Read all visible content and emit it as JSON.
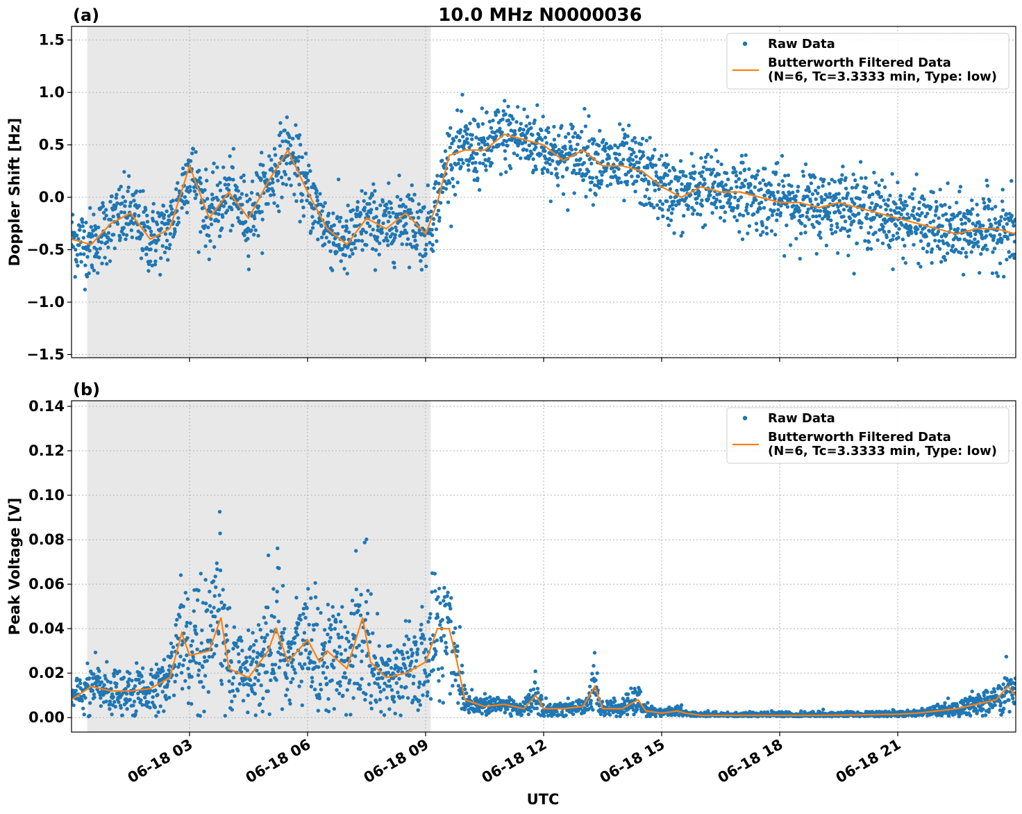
{
  "figure": {
    "title": "10.0 MHz N0000036",
    "xlabel": "UTC"
  },
  "colors": {
    "raw": "#1f77b4",
    "filtered": "#ff7f0e",
    "shade": "#e8e8e8"
  },
  "chart_data": [
    {
      "type": "scatter",
      "panel_label": "(a)",
      "ylabel": "Doppler Shift [Hz]",
      "xlim_hours": [
        0.0,
        24.0
      ],
      "ylim": [
        -1.53,
        1.63
      ],
      "yticks": [
        -1.5,
        -1.0,
        -0.5,
        0.0,
        0.5,
        1.0,
        1.5
      ],
      "ytick_labels": [
        "−1.5",
        "−1.0",
        "−0.5",
        "0.0",
        "0.5",
        "1.0",
        "1.5"
      ],
      "xticks_hours": [
        3,
        6,
        9,
        12,
        15,
        18,
        21
      ],
      "night_shade_hours": [
        0.4,
        9.13
      ],
      "grid": true,
      "legend_placement": "top-right",
      "legend": {
        "raw": "Raw Data",
        "filtered_line1": "Butterworth Filtered Data",
        "filtered_line2": "(N=6, Tc=3.3333 min, Type: low)"
      },
      "series": [
        {
          "name": "Butterworth Filtered Data",
          "x_hours": [
            0,
            0.5,
            1,
            1.5,
            2,
            2.5,
            3,
            3.5,
            4,
            4.5,
            5,
            5.5,
            6,
            6.5,
            7,
            7.5,
            8,
            8.5,
            9,
            9.3,
            9.6,
            10,
            10.5,
            11,
            11.5,
            12,
            12.5,
            13,
            13.5,
            14,
            14.5,
            15,
            15.5,
            16,
            16.5,
            17,
            17.5,
            18,
            18.5,
            19,
            19.5,
            20,
            20.5,
            21,
            21.5,
            22,
            22.5,
            23,
            23.5,
            24
          ],
          "values": [
            -0.4,
            -0.45,
            -0.25,
            -0.15,
            -0.4,
            -0.3,
            0.3,
            -0.2,
            0.05,
            -0.2,
            0.15,
            0.45,
            0.05,
            -0.3,
            -0.45,
            -0.2,
            -0.3,
            -0.15,
            -0.35,
            -0.05,
            0.4,
            0.45,
            0.45,
            0.6,
            0.55,
            0.5,
            0.35,
            0.45,
            0.3,
            0.3,
            0.25,
            0.1,
            0.0,
            0.1,
            0.05,
            0.05,
            0.0,
            -0.05,
            -0.05,
            -0.1,
            -0.05,
            -0.1,
            -0.15,
            -0.2,
            -0.25,
            -0.3,
            -0.35,
            -0.3,
            -0.3,
            -0.35
          ]
        }
      ]
    },
    {
      "type": "scatter",
      "panel_label": "(b)",
      "ylabel": "Peak Voltage [V]",
      "xlim_hours": [
        0.0,
        24.0
      ],
      "ylim": [
        -0.0065,
        0.1425
      ],
      "yticks": [
        0.0,
        0.02,
        0.04,
        0.06,
        0.08,
        0.1,
        0.12,
        0.14
      ],
      "ytick_labels": [
        "0.00",
        "0.02",
        "0.04",
        "0.06",
        "0.08",
        "0.10",
        "0.12",
        "0.14"
      ],
      "xticks_hours": [
        3,
        6,
        9,
        12,
        15,
        18,
        21
      ],
      "xtick_labels": [
        "06-18 03",
        "06-18 06",
        "06-18 09",
        "06-18 12",
        "06-18 15",
        "06-18 18",
        "06-18 21"
      ],
      "night_shade_hours": [
        0.4,
        9.13
      ],
      "grid": true,
      "legend_placement": "top-right",
      "legend": {
        "raw": "Raw Data",
        "filtered_line1": "Butterworth Filtered Data",
        "filtered_line2": "(N=6, Tc=3.3333 min, Type: low)"
      },
      "series": [
        {
          "name": "Butterworth Filtered Data",
          "x_hours": [
            0,
            0.5,
            1,
            1.5,
            2,
            2.5,
            2.8,
            3,
            3.5,
            3.8,
            4,
            4.5,
            5,
            5.2,
            5.5,
            6,
            6.3,
            6.5,
            7,
            7.4,
            7.6,
            8,
            8.5,
            9,
            9.3,
            9.6,
            9.8,
            10,
            10.5,
            11,
            11.5,
            11.8,
            12,
            12.5,
            13,
            13.3,
            13.5,
            14,
            14.4,
            14.6,
            15,
            15.4,
            15.6,
            16,
            17,
            18,
            19,
            20,
            21,
            21.5,
            22,
            22.5,
            23,
            23.5,
            23.8,
            24
          ],
          "values": [
            0.008,
            0.014,
            0.012,
            0.012,
            0.013,
            0.018,
            0.038,
            0.028,
            0.03,
            0.045,
            0.022,
            0.018,
            0.03,
            0.04,
            0.025,
            0.035,
            0.025,
            0.03,
            0.022,
            0.045,
            0.025,
            0.018,
            0.02,
            0.025,
            0.04,
            0.04,
            0.025,
            0.008,
            0.005,
            0.006,
            0.004,
            0.01,
            0.004,
            0.004,
            0.005,
            0.014,
            0.004,
            0.004,
            0.008,
            0.003,
            0.002,
            0.003,
            0.002,
            0.001,
            0.001,
            0.001,
            0.001,
            0.0012,
            0.0015,
            0.002,
            0.003,
            0.004,
            0.006,
            0.008,
            0.014,
            0.01
          ]
        }
      ]
    }
  ]
}
